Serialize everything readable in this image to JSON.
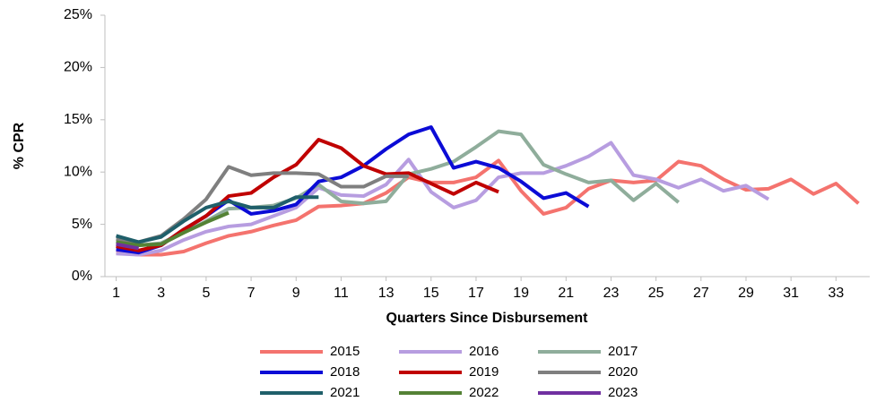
{
  "chart_data": {
    "type": "line",
    "x_label": "Quarters Since Disbursement",
    "y_label": "% CPR",
    "x": [
      1,
      2,
      3,
      4,
      5,
      6,
      7,
      8,
      9,
      10,
      11,
      12,
      13,
      14,
      15,
      16,
      17,
      18,
      19,
      20,
      21,
      22,
      23,
      24,
      25,
      26,
      27,
      28,
      29,
      30,
      31,
      32,
      33,
      34
    ],
    "xlim": [
      0.5,
      34.5
    ],
    "xticks": [
      1,
      3,
      5,
      7,
      9,
      11,
      13,
      15,
      17,
      19,
      21,
      23,
      25,
      27,
      29,
      31,
      33
    ],
    "ylim": [
      0,
      25
    ],
    "yticks": [
      {
        "value": 0,
        "label": "0%"
      },
      {
        "value": 5,
        "label": "5%"
      },
      {
        "value": 10,
        "label": "10%"
      },
      {
        "value": 15,
        "label": "15%"
      },
      {
        "value": 20,
        "label": "20%"
      },
      {
        "value": 25,
        "label": "25%"
      }
    ],
    "series": [
      {
        "name": "2015",
        "color": "#f4736e",
        "values": [
          2.3,
          2.1,
          2.1,
          2.4,
          3.2,
          3.9,
          4.3,
          4.9,
          5.4,
          6.7,
          6.8,
          7.0,
          8.0,
          9.5,
          9.0,
          9.0,
          9.5,
          11.1,
          8.2,
          6.0,
          6.6,
          8.4,
          9.2,
          9.0,
          9.2,
          11.0,
          10.6,
          9.3,
          8.3,
          8.4,
          9.3,
          7.9,
          8.9,
          7.0
        ]
      },
      {
        "name": "2016",
        "color": "#b79de0",
        "values": [
          2.2,
          2.1,
          2.5,
          3.5,
          4.3,
          4.8,
          5.0,
          5.8,
          6.6,
          8.5,
          7.8,
          7.7,
          8.8,
          11.2,
          8.1,
          6.6,
          7.3,
          9.5,
          9.9,
          9.9,
          10.6,
          11.5,
          12.8,
          9.7,
          9.3,
          8.5,
          9.3,
          8.2,
          8.7,
          7.4,
          null,
          null,
          null,
          null
        ]
      },
      {
        "name": "2017",
        "color": "#8fad9b",
        "values": [
          3.4,
          3.0,
          3.2,
          4.2,
          5.3,
          6.5,
          6.6,
          6.8,
          7.5,
          8.8,
          7.2,
          7.0,
          7.2,
          9.8,
          10.3,
          11.0,
          12.4,
          13.9,
          13.6,
          10.7,
          9.8,
          9.0,
          9.2,
          7.3,
          8.9,
          7.1,
          null,
          null,
          null,
          null,
          null,
          null,
          null,
          null
        ]
      },
      {
        "name": "2018",
        "color": "#0b0bd6",
        "values": [
          2.6,
          2.3,
          3.0,
          4.5,
          5.8,
          7.3,
          6.0,
          6.3,
          6.9,
          9.1,
          9.5,
          10.6,
          12.2,
          13.6,
          14.3,
          10.4,
          11.0,
          10.4,
          9.1,
          7.5,
          8.0,
          6.7,
          null,
          null,
          null,
          null,
          null,
          null,
          null,
          null,
          null,
          null,
          null,
          null
        ]
      },
      {
        "name": "2019",
        "color": "#c00000",
        "values": [
          2.9,
          2.5,
          3.0,
          4.5,
          5.8,
          7.7,
          8.0,
          9.5,
          10.7,
          13.1,
          12.3,
          10.6,
          9.8,
          9.9,
          8.9,
          7.9,
          9.0,
          8.1,
          null,
          null,
          null,
          null,
          null,
          null,
          null,
          null,
          null,
          null,
          null,
          null,
          null,
          null,
          null,
          null
        ]
      },
      {
        "name": "2020",
        "color": "#7f7f7f",
        "values": [
          3.6,
          3.3,
          3.9,
          5.5,
          7.4,
          10.5,
          9.7,
          9.9,
          9.9,
          9.8,
          8.6,
          8.6,
          9.6,
          9.6,
          null,
          null,
          null,
          null,
          null,
          null,
          null,
          null,
          null,
          null,
          null,
          null,
          null,
          null,
          null,
          null,
          null,
          null,
          null,
          null
        ]
      },
      {
        "name": "2021",
        "color": "#1f5f6a",
        "values": [
          3.9,
          3.3,
          3.8,
          5.3,
          6.6,
          7.2,
          6.6,
          6.6,
          7.6,
          7.6,
          null,
          null,
          null,
          null,
          null,
          null,
          null,
          null,
          null,
          null,
          null,
          null,
          null,
          null,
          null,
          null,
          null,
          null,
          null,
          null,
          null,
          null,
          null,
          null
        ]
      },
      {
        "name": "2022",
        "color": "#548235",
        "values": [
          3.3,
          3.0,
          3.1,
          4.2,
          5.2,
          6.1,
          null,
          null,
          null,
          null,
          null,
          null,
          null,
          null,
          null,
          null,
          null,
          null,
          null,
          null,
          null,
          null,
          null,
          null,
          null,
          null,
          null,
          null,
          null,
          null,
          null,
          null,
          null,
          null
        ]
      },
      {
        "name": "2023",
        "color": "#7030a0",
        "values": [
          3.1,
          2.7,
          null,
          null,
          null,
          null,
          null,
          null,
          null,
          null,
          null,
          null,
          null,
          null,
          null,
          null,
          null,
          null,
          null,
          null,
          null,
          null,
          null,
          null,
          null,
          null,
          null,
          null,
          null,
          null,
          null,
          null,
          null,
          null
        ]
      }
    ]
  }
}
